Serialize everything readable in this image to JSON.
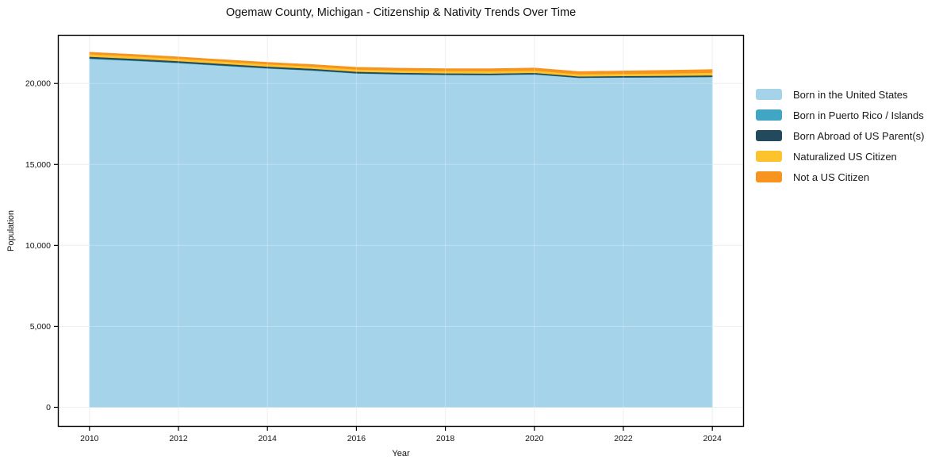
{
  "title": "Ogemaw County, Michigan - Citizenship & Nativity Trends Over Time",
  "chart_data": {
    "type": "area",
    "stacked": true,
    "title": "Ogemaw County, Michigan - Citizenship & Nativity Trends Over Time",
    "xlabel": "Year",
    "ylabel": "Population",
    "x": [
      2010,
      2011,
      2012,
      2013,
      2014,
      2015,
      2016,
      2017,
      2018,
      2019,
      2020,
      2021,
      2022,
      2023,
      2024
    ],
    "series": [
      {
        "name": "Born in the United States",
        "color": "#a4d3ea",
        "values": [
          21520,
          21400,
          21260,
          21090,
          20930,
          20800,
          20620,
          20560,
          20530,
          20515,
          20560,
          20350,
          20370,
          20380,
          20400
        ]
      },
      {
        "name": "Born in Puerto Rico / Islands",
        "color": "#41a6c4",
        "values": [
          30,
          28,
          26,
          25,
          24,
          22,
          20,
          19,
          18,
          17,
          16,
          15,
          15,
          16,
          16
        ]
      },
      {
        "name": "Born Abroad of US Parent(s)",
        "color": "#234a5c",
        "values": [
          110,
          106,
          102,
          100,
          96,
          94,
          90,
          90,
          88,
          88,
          85,
          80,
          82,
          85,
          90
        ]
      },
      {
        "name": "Naturalized US Citizen",
        "color": "#fcc32d",
        "values": [
          155,
          150,
          147,
          144,
          141,
          139,
          140,
          141,
          143,
          146,
          145,
          130,
          140,
          150,
          160
        ]
      },
      {
        "name": "Not a US Citizen",
        "color": "#f6941f",
        "values": [
          115,
          112,
          110,
          112,
          114,
          118,
          130,
          135,
          140,
          145,
          150,
          160,
          170,
          185,
          200
        ]
      }
    ],
    "xticks": [
      2010,
      2012,
      2014,
      2016,
      2018,
      2020,
      2022,
      2024
    ],
    "yticks": [
      0,
      5000,
      10000,
      15000,
      20000
    ],
    "xlim": [
      2009.29,
      2024.71
    ],
    "ylim": [
      -1200,
      23000
    ],
    "grid": true,
    "legend_position": "right",
    "grid_color": "#e9e9e9",
    "frame_color": "#000000"
  }
}
